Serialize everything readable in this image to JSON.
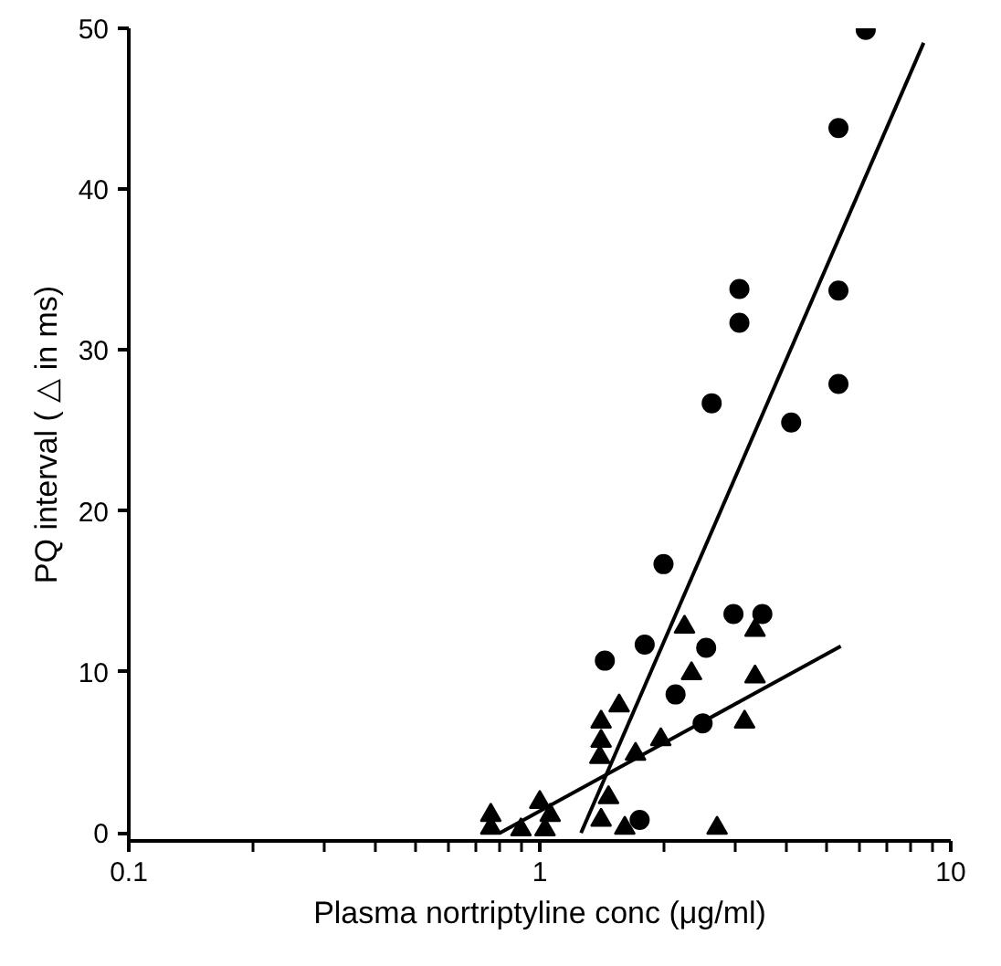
{
  "chart_data": {
    "type": "scatter",
    "xlabel": "Plasma nortriptyline conc (μg/ml)",
    "ylabel": "PQ interval ( △ in ms)",
    "log": "x",
    "xlim": [
      0.1,
      10
    ],
    "xticks": [
      0.1,
      1,
      10
    ],
    "ylim": [
      -0.5,
      50
    ],
    "yticks": [
      0,
      10,
      20,
      30,
      40,
      50
    ],
    "grid": false,
    "series": [
      {
        "marker": "circle",
        "color": "#000000",
        "x": [
          6.21,
          5.33,
          3.06,
          3.06,
          5.33,
          2.62,
          5.33,
          4.09,
          2.0,
          2.96,
          3.48,
          1.44,
          1.8,
          2.54,
          2.14,
          2.49,
          1.75
        ],
        "values": [
          49.9,
          43.8,
          33.8,
          31.7,
          33.7,
          26.7,
          27.9,
          25.5,
          16.7,
          13.6,
          13.6,
          10.7,
          11.7,
          11.5,
          8.6,
          6.8,
          0.8
        ]
      },
      {
        "marker": "triangle",
        "color": "#000000",
        "x": [
          2.25,
          3.34,
          2.34,
          3.34,
          1.56,
          1.41,
          1.41,
          1.4,
          1.71,
          1.97,
          3.15,
          1.47,
          1.41,
          1.61,
          2.7,
          1.0,
          1.06,
          1.03,
          0.9,
          0.76,
          0.76
        ],
        "values": [
          12.8,
          12.6,
          9.9,
          9.7,
          7.9,
          6.9,
          5.7,
          4.7,
          4.9,
          5.8,
          6.9,
          2.2,
          0.8,
          0.3,
          0.3,
          1.9,
          1.1,
          0.2,
          0.2,
          0.3,
          1.1
        ]
      },
      {
        "type": "line",
        "color": "#000000",
        "x": [
          1.26,
          8.59
        ],
        "values": [
          0,
          49.1
        ]
      },
      {
        "type": "line",
        "color": "#000000",
        "x": [
          0.8,
          5.4
        ],
        "values": [
          0,
          11.6
        ]
      }
    ]
  }
}
